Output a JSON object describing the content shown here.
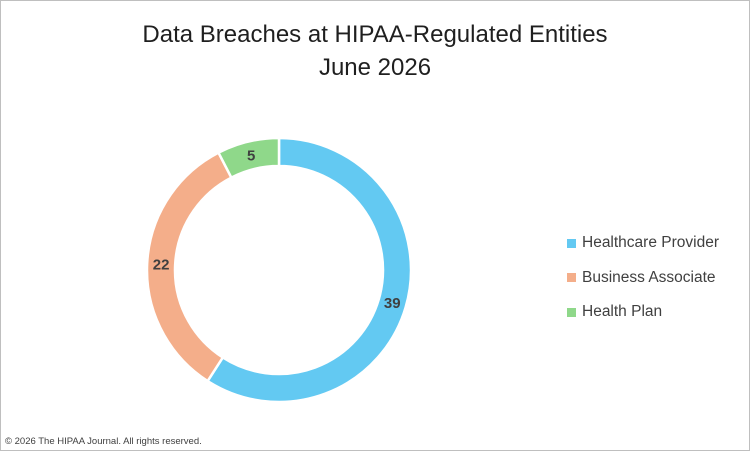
{
  "chart_data": {
    "type": "pie",
    "variant": "donut",
    "title": "Data Breaches at HIPAA-Regulated Entities",
    "subtitle": "June 2026",
    "categories": [
      "Healthcare Provider",
      "Business Associate",
      "Health Plan"
    ],
    "values": [
      39,
      22,
      5
    ],
    "colors": [
      "#63c9f2",
      "#f4ae8a",
      "#8fd88a"
    ],
    "data_labels": [
      "39",
      "22",
      "5"
    ],
    "legend_position": "right"
  },
  "footer": {
    "copyright": "© 2026 The HIPAA Journal. All rights reserved."
  }
}
